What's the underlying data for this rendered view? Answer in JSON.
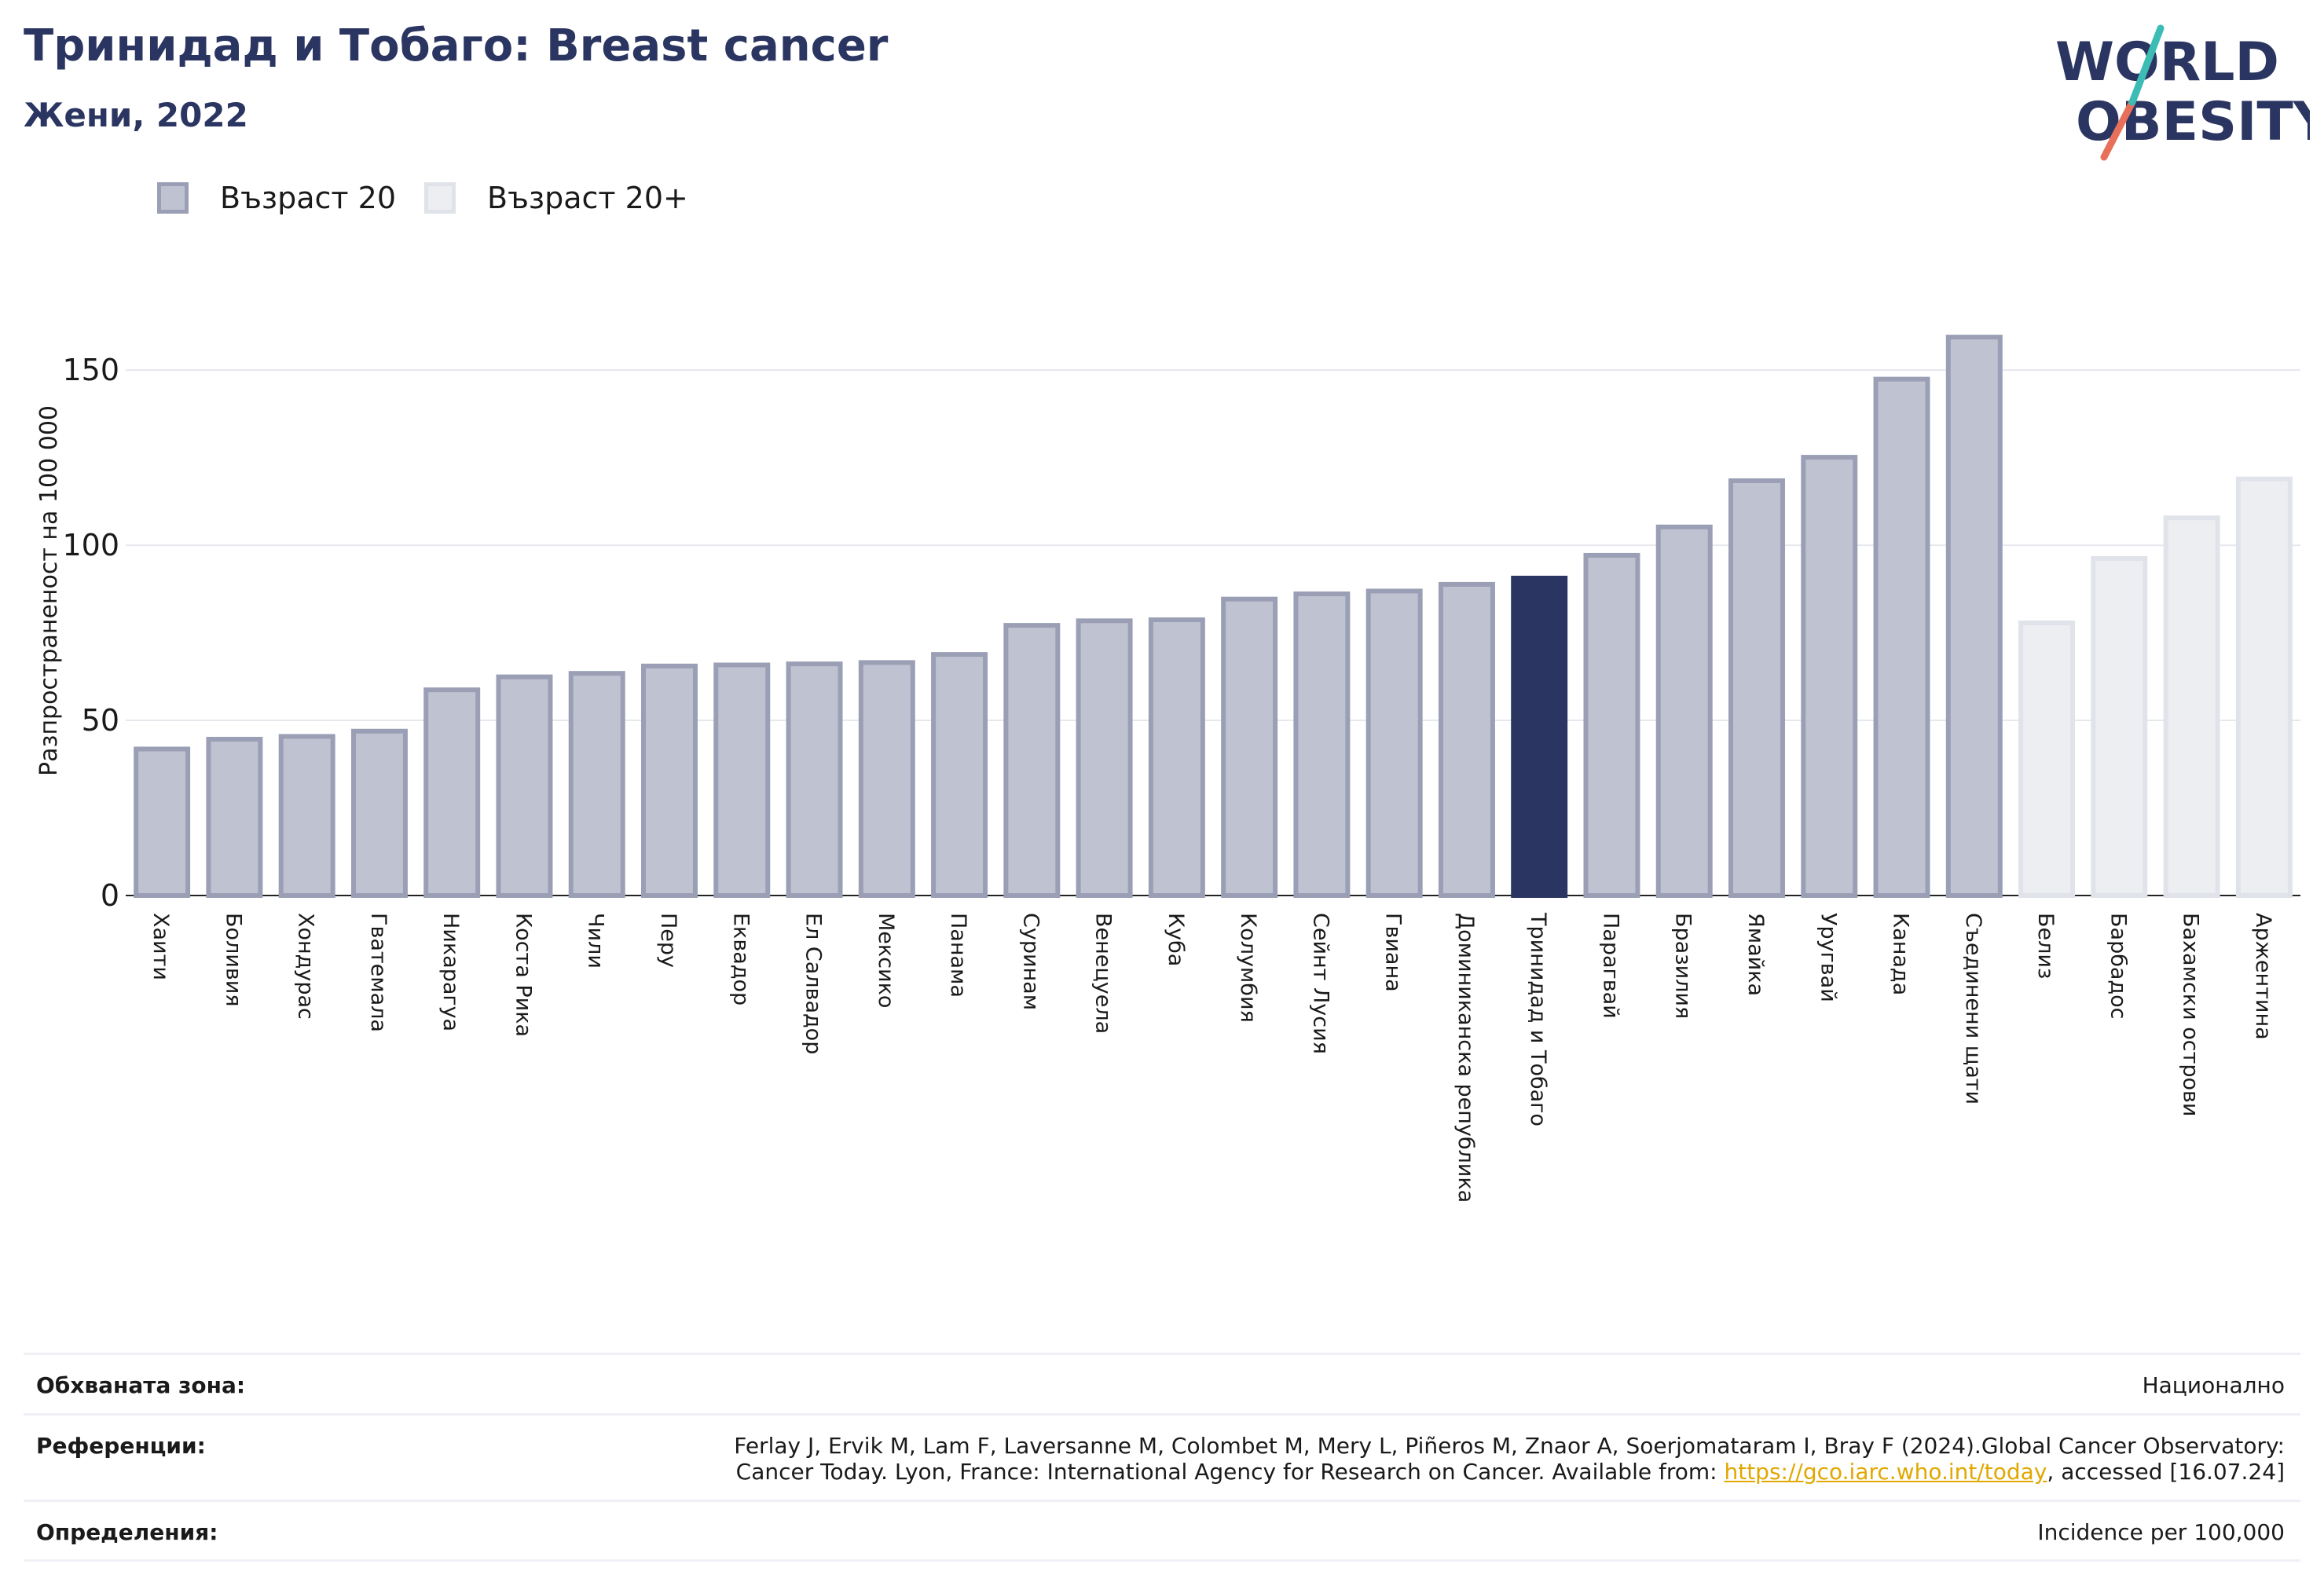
{
  "header": {
    "title": "Тринидад и Тобаго: Breast cancer",
    "subtitle": "Жени, 2022"
  },
  "logo": {
    "line1": "WORLD",
    "line2": "OBESITY"
  },
  "legend": [
    {
      "label": "Възраст 20",
      "fill": "#bfc2d0",
      "stroke": "#9a9fb5"
    },
    {
      "label": "Възраст 20+",
      "fill": "#eceef2",
      "stroke": "#e0e3e9"
    }
  ],
  "chart_data": {
    "type": "bar",
    "ylabel": "Разпространеност  на 100 000",
    "ylim": [
      0,
      170
    ],
    "yticks": [
      0,
      50,
      100,
      150
    ],
    "grid": true,
    "legend_position": "top-left",
    "highlight": "Тринидад и Тобаго",
    "colors": {
      "age20": "#bfc2d0",
      "age20_stroke": "#9a9fb5",
      "age20plus": "#eceef2",
      "age20plus_stroke": "#e0e3e9",
      "highlight": "#2b3561"
    },
    "bars": [
      {
        "category": "Хаити",
        "value": 42.5,
        "series": "Възраст 20"
      },
      {
        "category": "Боливия",
        "value": 45.3,
        "series": "Възраст 20"
      },
      {
        "category": "Хондурас",
        "value": 46.1,
        "series": "Възраст 20"
      },
      {
        "category": "Гватемала",
        "value": 47.6,
        "series": "Възраст 20"
      },
      {
        "category": "Никарагуа",
        "value": 59.4,
        "series": "Възраст 20"
      },
      {
        "category": "Коста Рика",
        "value": 63.1,
        "series": "Възраст 20"
      },
      {
        "category": "Чили",
        "value": 64.1,
        "series": "Възраст 20"
      },
      {
        "category": "Перу",
        "value": 66.2,
        "series": "Възраст 20"
      },
      {
        "category": "Еквадор",
        "value": 66.5,
        "series": "Възраст 20"
      },
      {
        "category": "Ел Салвадор",
        "value": 66.8,
        "series": "Възраст 20"
      },
      {
        "category": "Мексико",
        "value": 67.2,
        "series": "Възраст 20"
      },
      {
        "category": "Панама",
        "value": 69.5,
        "series": "Възраст 20"
      },
      {
        "category": "Суринам",
        "value": 77.8,
        "series": "Възраст 20"
      },
      {
        "category": "Венецуела",
        "value": 79.1,
        "series": "Възраст 20"
      },
      {
        "category": "Куба",
        "value": 79.4,
        "series": "Възраст 20"
      },
      {
        "category": "Колумбия",
        "value": 85.3,
        "series": "Възраст 20"
      },
      {
        "category": "Сейнт Лусия",
        "value": 86.8,
        "series": "Възраст 20"
      },
      {
        "category": "Гвиана",
        "value": 87.6,
        "series": "Възраст 20"
      },
      {
        "category": "Доминиканска република",
        "value": 89.5,
        "series": "Възраст 20"
      },
      {
        "category": "Тринидад и Тобаго",
        "value": 91.3,
        "series": "Възраст 20"
      },
      {
        "category": "Парагвай",
        "value": 97.8,
        "series": "Възраст 20"
      },
      {
        "category": "Бразилия",
        "value": 105.9,
        "series": "Възраст 20"
      },
      {
        "category": "Ямайка",
        "value": 119.1,
        "series": "Възраст 20"
      },
      {
        "category": "Уругвай",
        "value": 125.8,
        "series": "Възраст 20"
      },
      {
        "category": "Канада",
        "value": 148.1,
        "series": "Възраст 20"
      },
      {
        "category": "Съединени щати",
        "value": 160.1,
        "series": "Възраст 20"
      },
      {
        "category": "Белиз",
        "value": 78.5,
        "series": "Възраст 20+"
      },
      {
        "category": "Барбадос",
        "value": 96.9,
        "series": "Възраст 20+"
      },
      {
        "category": "Бахамски острови",
        "value": 108.5,
        "series": "Възраст 20+"
      },
      {
        "category": "Аржентина",
        "value": 119.6,
        "series": "Възраст 20+"
      }
    ]
  },
  "footer": {
    "coverage_label": "Обхваната зона:",
    "coverage_value": "Национално",
    "references_label": "Референции:",
    "references_line1": "Ferlay J, Ervik M, Lam F, Laversanne M, Colombet M, Mery L, Piñeros M, Znaor A, Soerjomataram I, Bray F (2024).Global Cancer Observatory:",
    "references_line2_pre": "Cancer Today. Lyon, France: International Agency for Research on Cancer. Available from: ",
    "references_link": "https://gco.iarc.who.int/today",
    "references_line2_post": ", accessed [16.07.24]",
    "definitions_label": "Определения:",
    "definitions_value": "Incidence per 100,000"
  }
}
